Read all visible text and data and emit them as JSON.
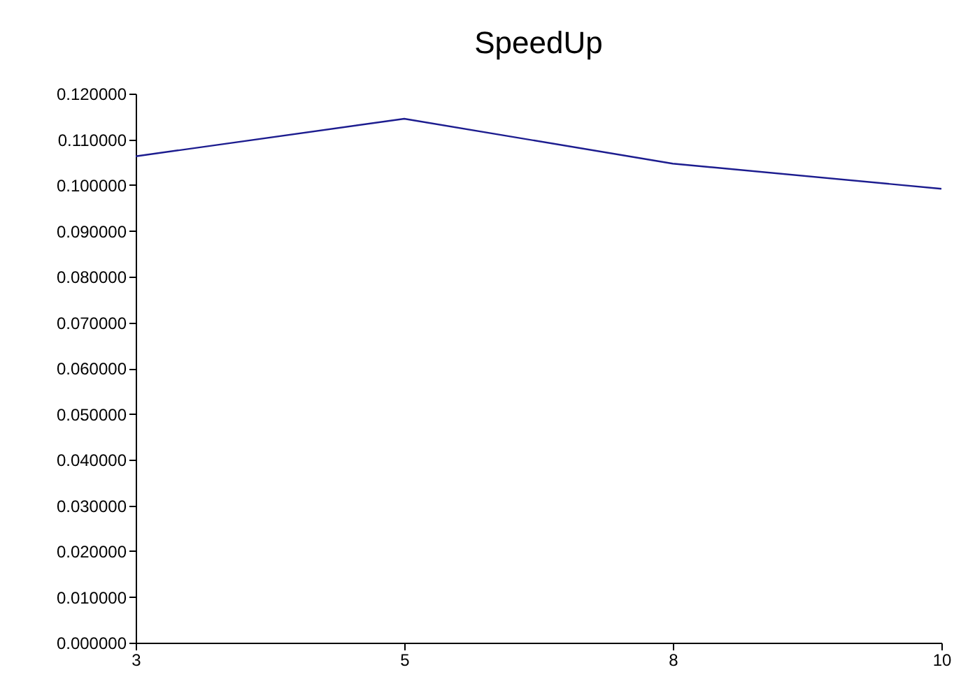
{
  "chart_data": {
    "type": "line",
    "title": "SpeedUp",
    "categories": [
      "3",
      "5",
      "8",
      "10"
    ],
    "series": [
      {
        "color": "#1c1c8f",
        "values": [
          0.1063,
          0.1145,
          0.1047,
          0.0992
        ]
      }
    ],
    "ylim": [
      0,
      0.12
    ],
    "yticks": [
      {
        "value": 0,
        "label": "0.000000"
      },
      {
        "value": 0.01,
        "label": "0.010000"
      },
      {
        "value": 0.02,
        "label": "0.020000"
      },
      {
        "value": 0.03,
        "label": "0.030000"
      },
      {
        "value": 0.04,
        "label": "0.040000"
      },
      {
        "value": 0.05,
        "label": "0.050000"
      },
      {
        "value": 0.06,
        "label": "0.060000"
      },
      {
        "value": 0.07,
        "label": "0.070000"
      },
      {
        "value": 0.08,
        "label": "0.080000"
      },
      {
        "value": 0.09,
        "label": "0.090000"
      },
      {
        "value": 0.1,
        "label": "0.100000"
      },
      {
        "value": 0.11,
        "label": "0.110000"
      },
      {
        "value": 0.12,
        "label": "0.120000"
      }
    ],
    "grid": false,
    "marker": "none"
  }
}
